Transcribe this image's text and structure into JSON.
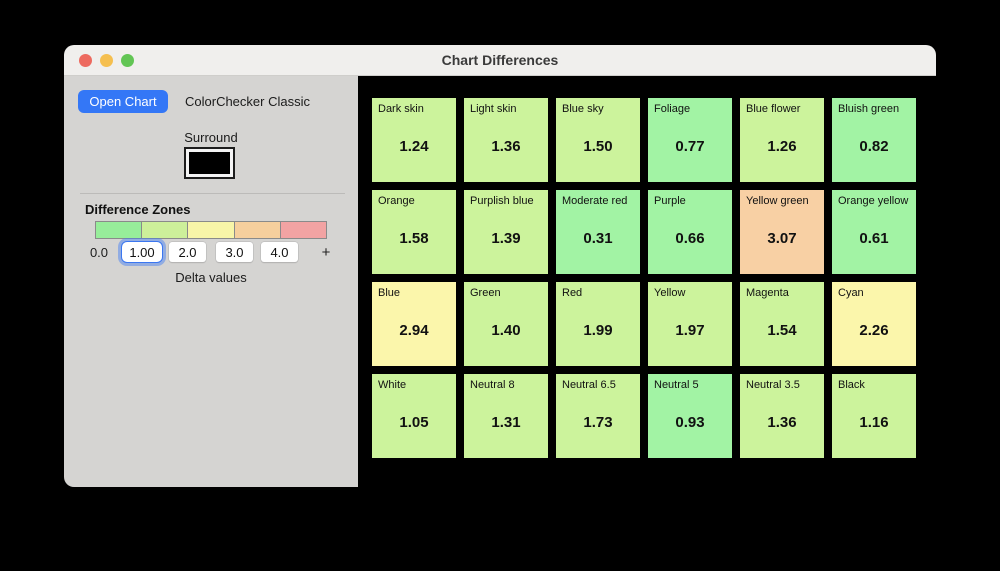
{
  "window": {
    "title": "Chart Differences",
    "traffic_lights": {
      "close": "#ed6a5f",
      "minimize": "#f5bf4f",
      "zoom": "#62c554"
    }
  },
  "sidebar": {
    "open_chart_button": "Open Chart",
    "chart_name": "ColorChecker Classic",
    "surround_label": "Surround",
    "surround_color": "#000000",
    "accent_color": "#3477f6",
    "zones": {
      "heading": "Difference Zones",
      "legend_colors": [
        "#97ed9a",
        "#cdf09a",
        "#f8f5a8",
        "#f6cf9d",
        "#f2a3a3"
      ],
      "min_label": "0.0",
      "thresholds": [
        {
          "value": "1.00",
          "focused": true
        },
        {
          "value": "2.0",
          "focused": false
        },
        {
          "value": "3.0",
          "focused": false
        },
        {
          "value": "4.0",
          "focused": false
        }
      ],
      "plus_label": "+",
      "delta_label": "Delta values"
    }
  },
  "grid": {
    "background": "#000000",
    "zone_colors": {
      "0-1": "#a2f3a4",
      "1-2": "#ccf39c",
      "2-3": "#fbf6ab",
      "3-4": "#f8d0a4",
      "4+": "#f2a3a3"
    },
    "patches": [
      {
        "label": "Dark skin",
        "value": "1.24",
        "zone": "1-2",
        "color": "#ccf39c"
      },
      {
        "label": "Light skin",
        "value": "1.36",
        "zone": "1-2",
        "color": "#ccf39c"
      },
      {
        "label": "Blue sky",
        "value": "1.50",
        "zone": "1-2",
        "color": "#ccf39c"
      },
      {
        "label": "Foliage",
        "value": "0.77",
        "zone": "0-1",
        "color": "#a2f3a4"
      },
      {
        "label": "Blue flower",
        "value": "1.26",
        "zone": "1-2",
        "color": "#ccf39c"
      },
      {
        "label": "Bluish green",
        "value": "0.82",
        "zone": "0-1",
        "color": "#a2f3a4"
      },
      {
        "label": "Orange",
        "value": "1.58",
        "zone": "1-2",
        "color": "#ccf39c"
      },
      {
        "label": "Purplish blue",
        "value": "1.39",
        "zone": "1-2",
        "color": "#ccf39c"
      },
      {
        "label": "Moderate red",
        "value": "0.31",
        "zone": "0-1",
        "color": "#a2f3a4"
      },
      {
        "label": "Purple",
        "value": "0.66",
        "zone": "0-1",
        "color": "#a2f3a4"
      },
      {
        "label": "Yellow green",
        "value": "3.07",
        "zone": "3-4",
        "color": "#f8d0a4"
      },
      {
        "label": "Orange yellow",
        "value": "0.61",
        "zone": "0-1",
        "color": "#a2f3a4"
      },
      {
        "label": "Blue",
        "value": "2.94",
        "zone": "2-3",
        "color": "#fbf6ab"
      },
      {
        "label": "Green",
        "value": "1.40",
        "zone": "1-2",
        "color": "#ccf39c"
      },
      {
        "label": "Red",
        "value": "1.99",
        "zone": "1-2",
        "color": "#ccf39c"
      },
      {
        "label": "Yellow",
        "value": "1.97",
        "zone": "1-2",
        "color": "#ccf39c"
      },
      {
        "label": "Magenta",
        "value": "1.54",
        "zone": "1-2",
        "color": "#ccf39c"
      },
      {
        "label": "Cyan",
        "value": "2.26",
        "zone": "2-3",
        "color": "#fbf6ab"
      },
      {
        "label": "White",
        "value": "1.05",
        "zone": "1-2",
        "color": "#ccf39c"
      },
      {
        "label": "Neutral 8",
        "value": "1.31",
        "zone": "1-2",
        "color": "#ccf39c"
      },
      {
        "label": "Neutral 6.5",
        "value": "1.73",
        "zone": "1-2",
        "color": "#ccf39c"
      },
      {
        "label": "Neutral 5",
        "value": "0.93",
        "zone": "0-1",
        "color": "#a2f3a4"
      },
      {
        "label": "Neutral 3.5",
        "value": "1.36",
        "zone": "1-2",
        "color": "#ccf39c"
      },
      {
        "label": "Black",
        "value": "1.16",
        "zone": "1-2",
        "color": "#ccf39c"
      }
    ]
  }
}
